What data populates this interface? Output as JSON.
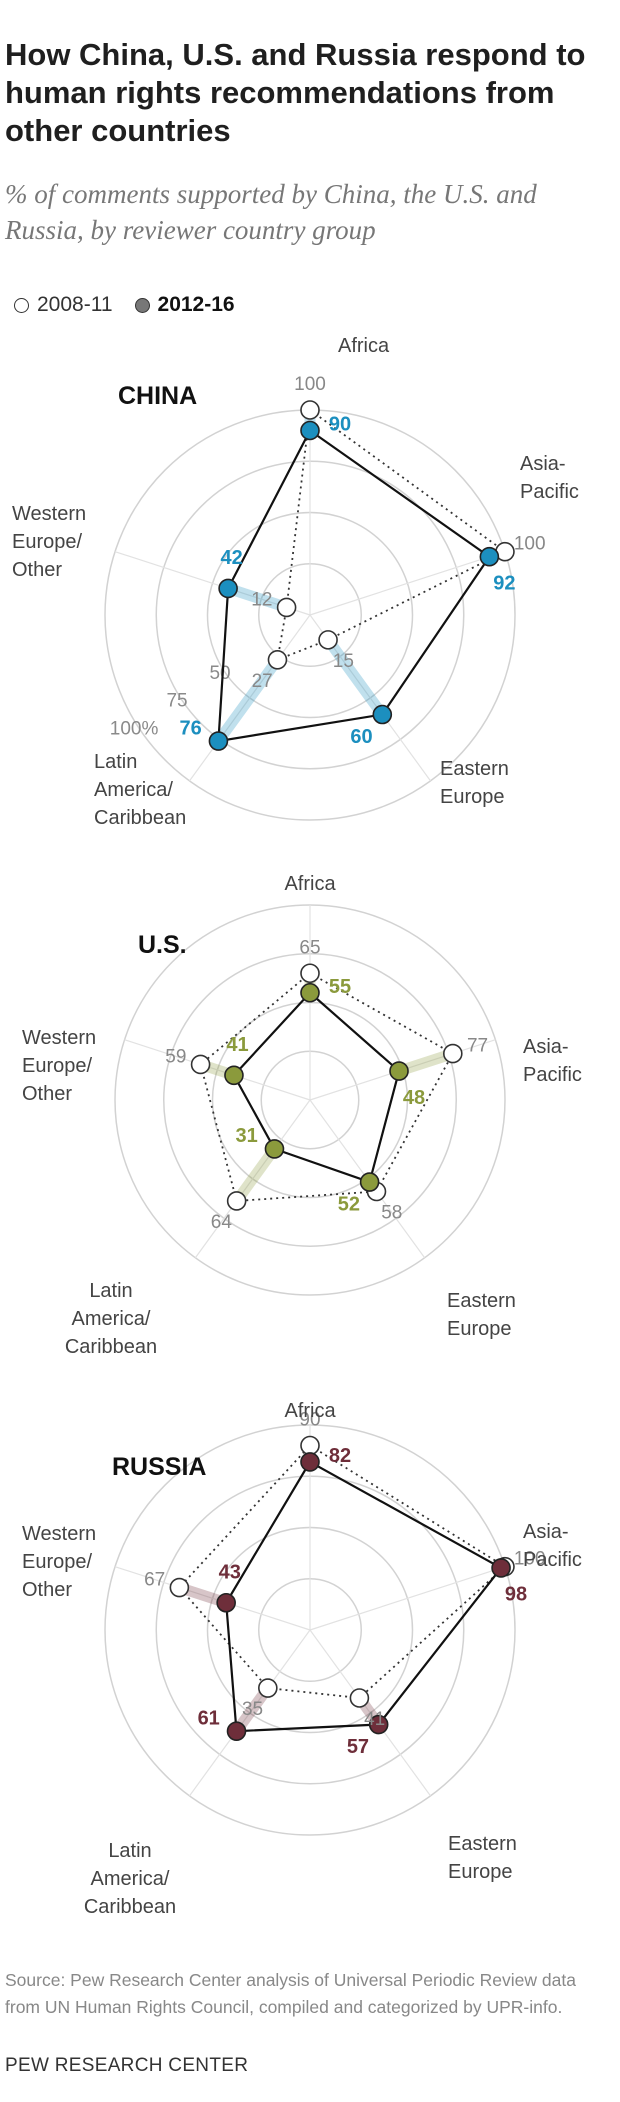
{
  "title": "How China, U.S. and Russia respond to human rights recommendations from other countries",
  "subtitle": "% of comments supported by China, the U.S. and Russia, by reviewer country group",
  "legend": {
    "period_a": "2008-11",
    "period_b": "2012-16"
  },
  "source": "Source: Pew Research Center analysis of Universal Periodic Review data from UN Human Rights Council, compiled and categorized by UPR-info.",
  "credit": "PEW RESEARCH CENTER",
  "colors": {
    "china": "#1c8fbf",
    "us": "#8b9a3c",
    "russia": "#6e2e3a",
    "grid": "#d2d2d2",
    "value_a": "#888888"
  },
  "chart_data": [
    {
      "type": "radar",
      "title": "CHINA",
      "axes": [
        "Africa",
        "Asia-Pacific",
        "Eastern Europe",
        "Latin America/ Caribbean",
        "Western Europe/ Other"
      ],
      "scale_labels": [
        "50",
        "75",
        "100%"
      ],
      "rmax": 100,
      "series": [
        {
          "name": "2008-11",
          "values": [
            100,
            100,
            15,
            27,
            12
          ]
        },
        {
          "name": "2012-16",
          "values": [
            90,
            92,
            60,
            76,
            42
          ]
        }
      ]
    },
    {
      "type": "radar",
      "title": "U.S.",
      "axes": [
        "Africa",
        "Asia-Pacific",
        "Eastern Europe",
        "Latin America/ Caribbean",
        "Western Europe/ Other"
      ],
      "scale_labels": [],
      "rmax": 100,
      "series": [
        {
          "name": "2008-11",
          "values": [
            65,
            77,
            58,
            64,
            59
          ]
        },
        {
          "name": "2012-16",
          "values": [
            55,
            48,
            52,
            31,
            41
          ]
        }
      ]
    },
    {
      "type": "radar",
      "title": "RUSSIA",
      "axes": [
        "Africa",
        "Asia-Pacific",
        "Eastern Europe",
        "Latin America/ Caribbean",
        "Western Europe/ Other"
      ],
      "scale_labels": [],
      "rmax": 100,
      "series": [
        {
          "name": "2008-11",
          "values": [
            90,
            100,
            41,
            35,
            67
          ]
        },
        {
          "name": "2012-16",
          "values": [
            82,
            98,
            57,
            61,
            43
          ]
        }
      ]
    }
  ]
}
